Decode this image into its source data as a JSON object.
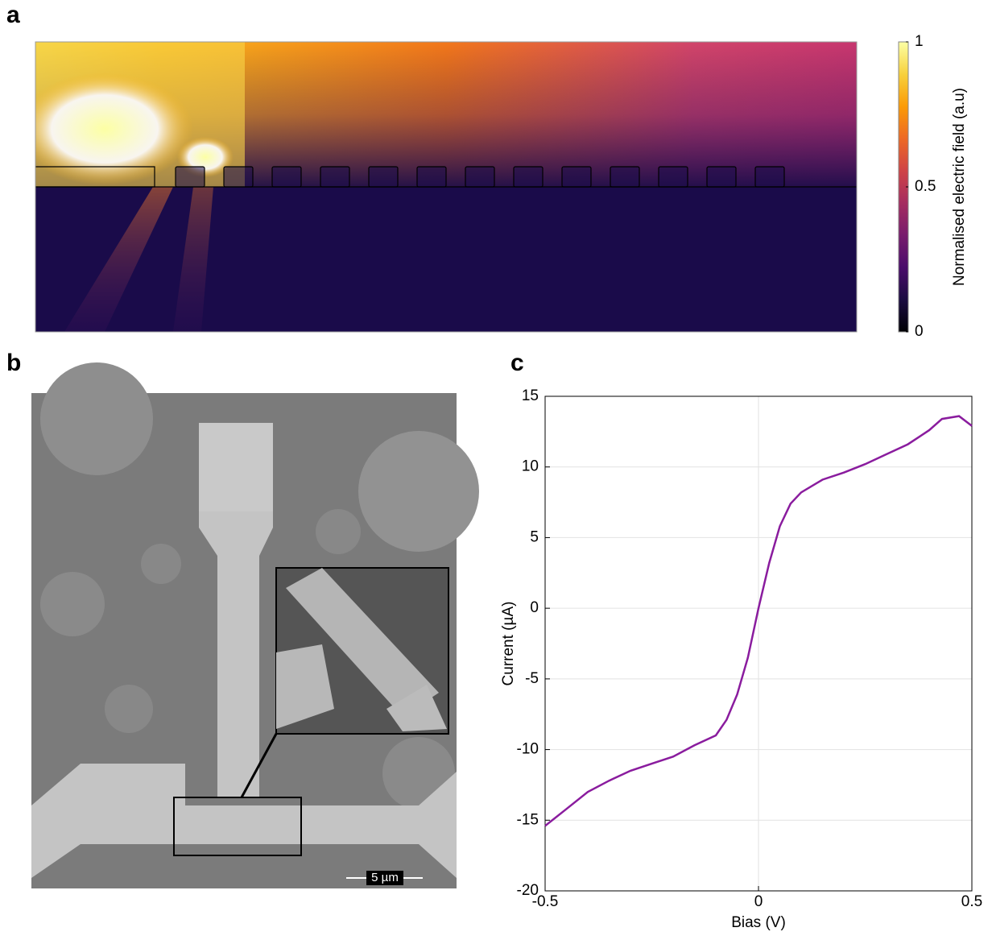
{
  "panel_labels": [
    "a",
    "b",
    "c"
  ],
  "sem_image": {
    "scale_bar": "5 µm"
  },
  "chart_data": [
    {
      "type": "heatmap",
      "colormap": "inferno",
      "colorbar_label": "Normalised electric field (a.u)",
      "clim": [
        0,
        1
      ],
      "cticks": [
        0,
        0.5,
        1
      ]
    },
    {
      "type": "line",
      "xlabel": "Bias (V)",
      "ylabel": "Current (µA)",
      "color": "#8a1c9e",
      "grid": true,
      "x": [
        -0.5,
        -0.45,
        -0.4,
        -0.35,
        -0.3,
        -0.25,
        -0.2,
        -0.15,
        -0.1,
        -0.075,
        -0.05,
        -0.025,
        0,
        0.025,
        0.05,
        0.075,
        0.1,
        0.15,
        0.2,
        0.25,
        0.3,
        0.35,
        0.4,
        0.43,
        0.47,
        0.5
      ],
      "values": [
        -15.4,
        -14.2,
        -13.0,
        -12.2,
        -11.5,
        -11.0,
        -10.5,
        -9.7,
        -9.0,
        -7.9,
        -6.1,
        -3.5,
        0,
        3.2,
        5.8,
        7.4,
        8.2,
        9.1,
        9.6,
        10.2,
        10.9,
        11.6,
        12.6,
        13.4,
        13.6,
        12.9
      ],
      "xlim": [
        -0.5,
        0.5
      ],
      "xticks": [
        -0.5,
        0,
        0.5
      ],
      "ylim": [
        -20,
        15
      ],
      "yticks": [
        -20,
        -15,
        -10,
        -5,
        0,
        5,
        10,
        15
      ]
    }
  ]
}
